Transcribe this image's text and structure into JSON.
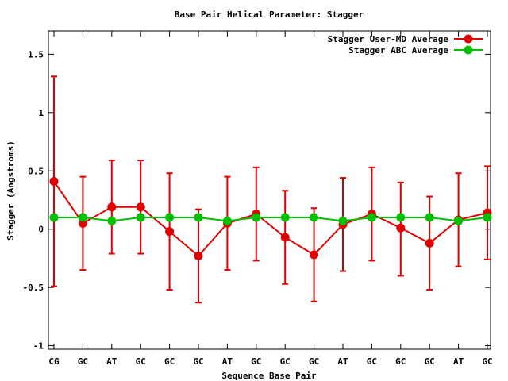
{
  "chart_data": {
    "type": "line",
    "title": "Base Pair Helical Parameter: Stagger",
    "xlabel": "Sequence Base Pair",
    "ylabel": "Stagger (Angstroms)",
    "categories": [
      "CG",
      "GC",
      "AT",
      "GC",
      "GC",
      "GC",
      "AT",
      "GC",
      "GC",
      "GC",
      "AT",
      "GC",
      "GC",
      "GC",
      "AT",
      "GC"
    ],
    "ylim": [
      -1.03,
      1.7
    ],
    "yticks": [
      -1,
      -0.5,
      0,
      0.5,
      1,
      1.5
    ],
    "ytick_labels": [
      "-1",
      "-0.5",
      "0",
      "0.5",
      "1",
      "1.5"
    ],
    "grid": false,
    "legend_position": "top-right",
    "series": [
      {
        "name": "Stagger User-MD Average",
        "color": "#e00000",
        "values": [
          0.41,
          0.05,
          0.19,
          0.19,
          -0.02,
          -0.23,
          0.05,
          0.13,
          -0.07,
          -0.22,
          0.04,
          0.13,
          0.01,
          -0.12,
          0.08,
          0.14
        ],
        "error_low": [
          -0.49,
          -0.35,
          -0.21,
          -0.21,
          -0.52,
          -0.63,
          -0.35,
          -0.27,
          -0.47,
          -0.62,
          -0.36,
          -0.27,
          -0.4,
          -0.52,
          -0.32,
          -0.26
        ],
        "error_high": [
          1.31,
          0.45,
          0.59,
          0.59,
          0.48,
          0.17,
          0.45,
          0.53,
          0.33,
          0.18,
          0.44,
          0.53,
          0.4,
          0.28,
          0.48,
          0.54
        ]
      },
      {
        "name": "Stagger ABC Average",
        "color": "#00c000",
        "values": [
          0.1,
          0.1,
          0.07,
          0.1,
          0.1,
          0.1,
          0.07,
          0.1,
          0.1,
          0.1,
          0.07,
          0.1,
          0.1,
          0.1,
          0.07,
          0.1
        ]
      }
    ]
  }
}
